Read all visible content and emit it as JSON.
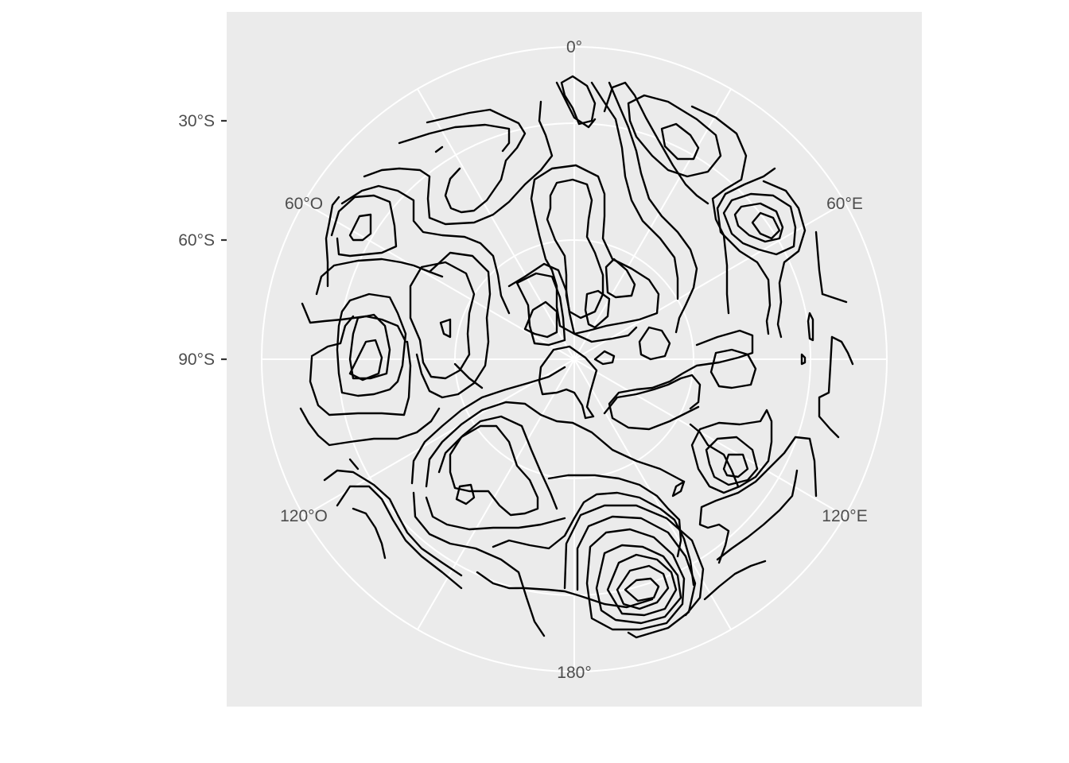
{
  "map": {
    "projection": "south polar stereographic (azimuthal)",
    "longitude_labels": [
      "0°",
      "60°E",
      "120°E",
      "180°",
      "120°O",
      "60°O"
    ],
    "latitude_labels": [
      "30°S",
      "60°S",
      "90°S"
    ],
    "graticule_color": "#ffffff",
    "panel_color": "#ebebeb",
    "contour_color": "#000000"
  }
}
